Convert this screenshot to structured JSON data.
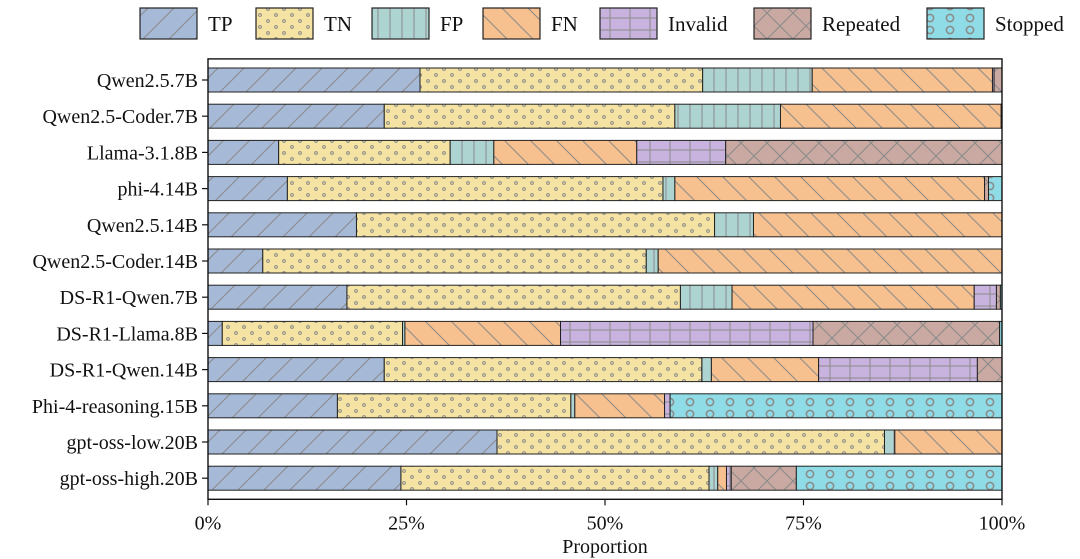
{
  "chart_data": {
    "type": "bar",
    "orientation": "horizontal",
    "stacked": true,
    "xlabel": "Proportion",
    "xlim": [
      0,
      1
    ],
    "xticks": [
      0,
      0.25,
      0.5,
      0.75,
      1
    ],
    "xtick_labels": [
      "0%",
      "25%",
      "50%",
      "75%",
      "100%"
    ],
    "legend_placement": "top",
    "grid": false,
    "categories": [
      "Qwen2.5.7B",
      "Qwen2.5-Coder.7B",
      "Llama-3.1.8B",
      "phi-4.14B",
      "Qwen2.5.14B",
      "Qwen2.5-Coder.14B",
      "DS-R1-Qwen.7B",
      "DS-R1-Llama.8B",
      "DS-R1-Qwen.14B",
      "Phi-4-reasoning.15B",
      "gpt-oss-low.20B",
      "gpt-oss-high.20B"
    ],
    "series": [
      {
        "name": "TP",
        "color": "#a6b9d6",
        "pattern": "fwd-diagonal",
        "values": [
          0.267,
          0.222,
          0.089,
          0.1,
          0.187,
          0.069,
          0.175,
          0.018,
          0.222,
          0.163,
          0.364,
          0.243
        ]
      },
      {
        "name": "TN",
        "color": "#f5e3a3",
        "pattern": "dots",
        "values": [
          0.356,
          0.366,
          0.216,
          0.473,
          0.451,
          0.483,
          0.42,
          0.227,
          0.4,
          0.294,
          0.488,
          0.388
        ]
      },
      {
        "name": "FP",
        "color": "#aed4d2",
        "pattern": "vertical",
        "values": [
          0.138,
          0.133,
          0.055,
          0.015,
          0.049,
          0.015,
          0.065,
          0.003,
          0.012,
          0.005,
          0.013,
          0.011
        ]
      },
      {
        "name": "FN",
        "color": "#f7c08f",
        "pattern": "back-diagonal",
        "values": [
          0.227,
          0.278,
          0.18,
          0.39,
          0.313,
          0.433,
          0.305,
          0.196,
          0.135,
          0.113,
          0.135,
          0.011
        ]
      },
      {
        "name": "Invalid",
        "color": "#c8b3df",
        "pattern": "grid",
        "values": [
          0.002,
          0.001,
          0.112,
          0.0,
          0.0,
          0.0,
          0.028,
          0.318,
          0.2,
          0.007,
          0.0,
          0.006
        ]
      },
      {
        "name": "Repeated",
        "color": "#c9a9a1",
        "pattern": "crosshatch",
        "values": [
          0.01,
          0.0,
          0.348,
          0.005,
          0.0,
          0.0,
          0.005,
          0.235,
          0.031,
          0.0,
          0.0,
          0.082
        ]
      },
      {
        "name": "Stopped",
        "color": "#8fdbe6",
        "pattern": "circles",
        "values": [
          0.0,
          0.0,
          0.0,
          0.017,
          0.0,
          0.0,
          0.002,
          0.003,
          0.0,
          0.418,
          0.0,
          0.259
        ]
      }
    ]
  }
}
